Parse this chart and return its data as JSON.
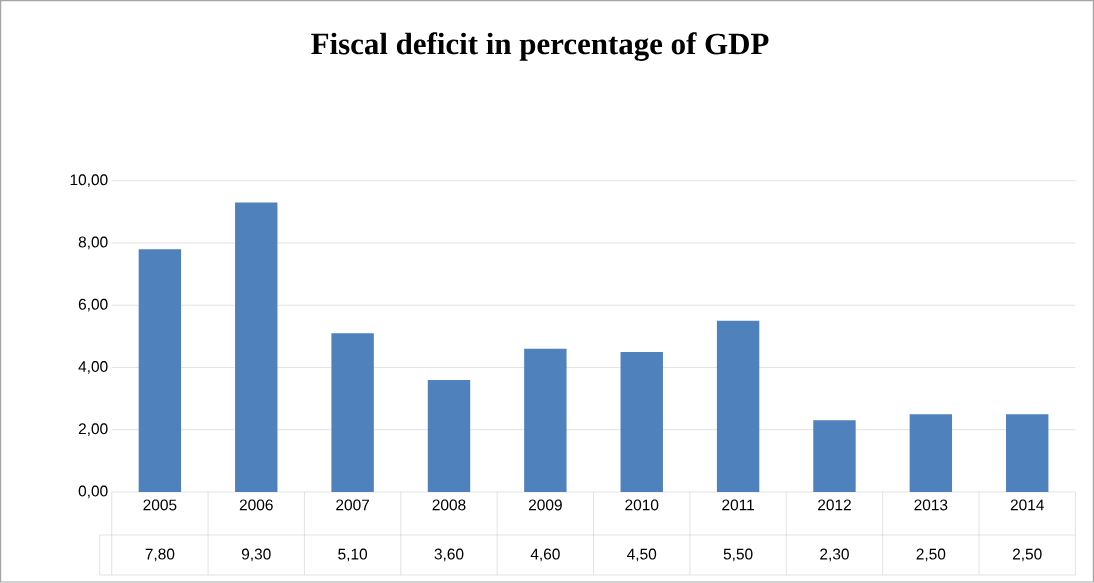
{
  "chart_data": {
    "type": "bar",
    "title": "Fiscal deficit in percentage of GDP",
    "categories": [
      "2005",
      "2006",
      "2007",
      "2008",
      "2009",
      "2010",
      "2011",
      "2012",
      "2013",
      "2014"
    ],
    "values": [
      7.8,
      9.3,
      5.1,
      3.6,
      4.6,
      4.5,
      5.5,
      2.3,
      2.5,
      2.5
    ],
    "value_labels": [
      "7,80",
      "9,30",
      "5,10",
      "3,60",
      "4,60",
      "4,50",
      "5,50",
      "2,30",
      "2,50",
      "2,50"
    ],
    "color": "#4f81bd",
    "ylim": [
      0,
      10
    ],
    "yticks": [
      {
        "value": 0,
        "label": "0,00"
      },
      {
        "value": 2,
        "label": "2,00"
      },
      {
        "value": 4,
        "label": "4,00"
      },
      {
        "value": 6,
        "label": "6,00"
      },
      {
        "value": 8,
        "label": "8,00"
      },
      {
        "value": 10,
        "label": "10,00"
      }
    ],
    "grid": "y"
  }
}
